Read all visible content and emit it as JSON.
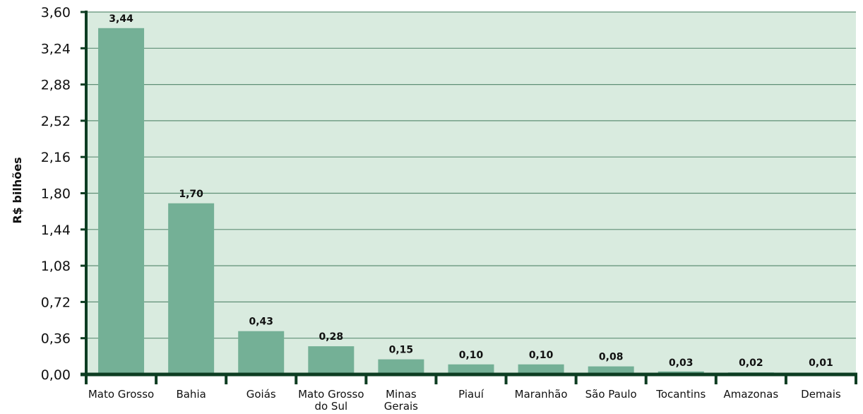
{
  "chart_data": {
    "type": "bar",
    "ylabel": "R$ bilhões",
    "ylim": [
      0,
      3.6
    ],
    "yticks": [
      "0,00",
      "0,36",
      "0,72",
      "1,08",
      "1,44",
      "1,80",
      "2,16",
      "2,52",
      "2,88",
      "3,24",
      "3,60"
    ],
    "categories": [
      [
        "Mato Grosso"
      ],
      [
        "Bahia"
      ],
      [
        "Goiás"
      ],
      [
        "Mato Grosso",
        "do Sul"
      ],
      [
        "Minas",
        "Gerais"
      ],
      [
        "Piauí"
      ],
      [
        "Maranhão"
      ],
      [
        "São Paulo"
      ],
      [
        "Tocantins"
      ],
      [
        "Amazonas"
      ],
      [
        "Demais"
      ]
    ],
    "values": [
      3.44,
      1.7,
      0.43,
      0.28,
      0.15,
      0.1,
      0.1,
      0.08,
      0.03,
      0.02,
      0.01
    ],
    "value_labels": [
      "3,44",
      "1,70",
      "0,43",
      "0,28",
      "0,15",
      "0,10",
      "0,10",
      "0,08",
      "0,03",
      "0,02",
      "0,01"
    ],
    "grid": true,
    "colors": {
      "bar": "#74b096",
      "plot_background": "#d9ebdf",
      "axis": "#0d3d22",
      "gridline": "#5f8f76"
    }
  }
}
